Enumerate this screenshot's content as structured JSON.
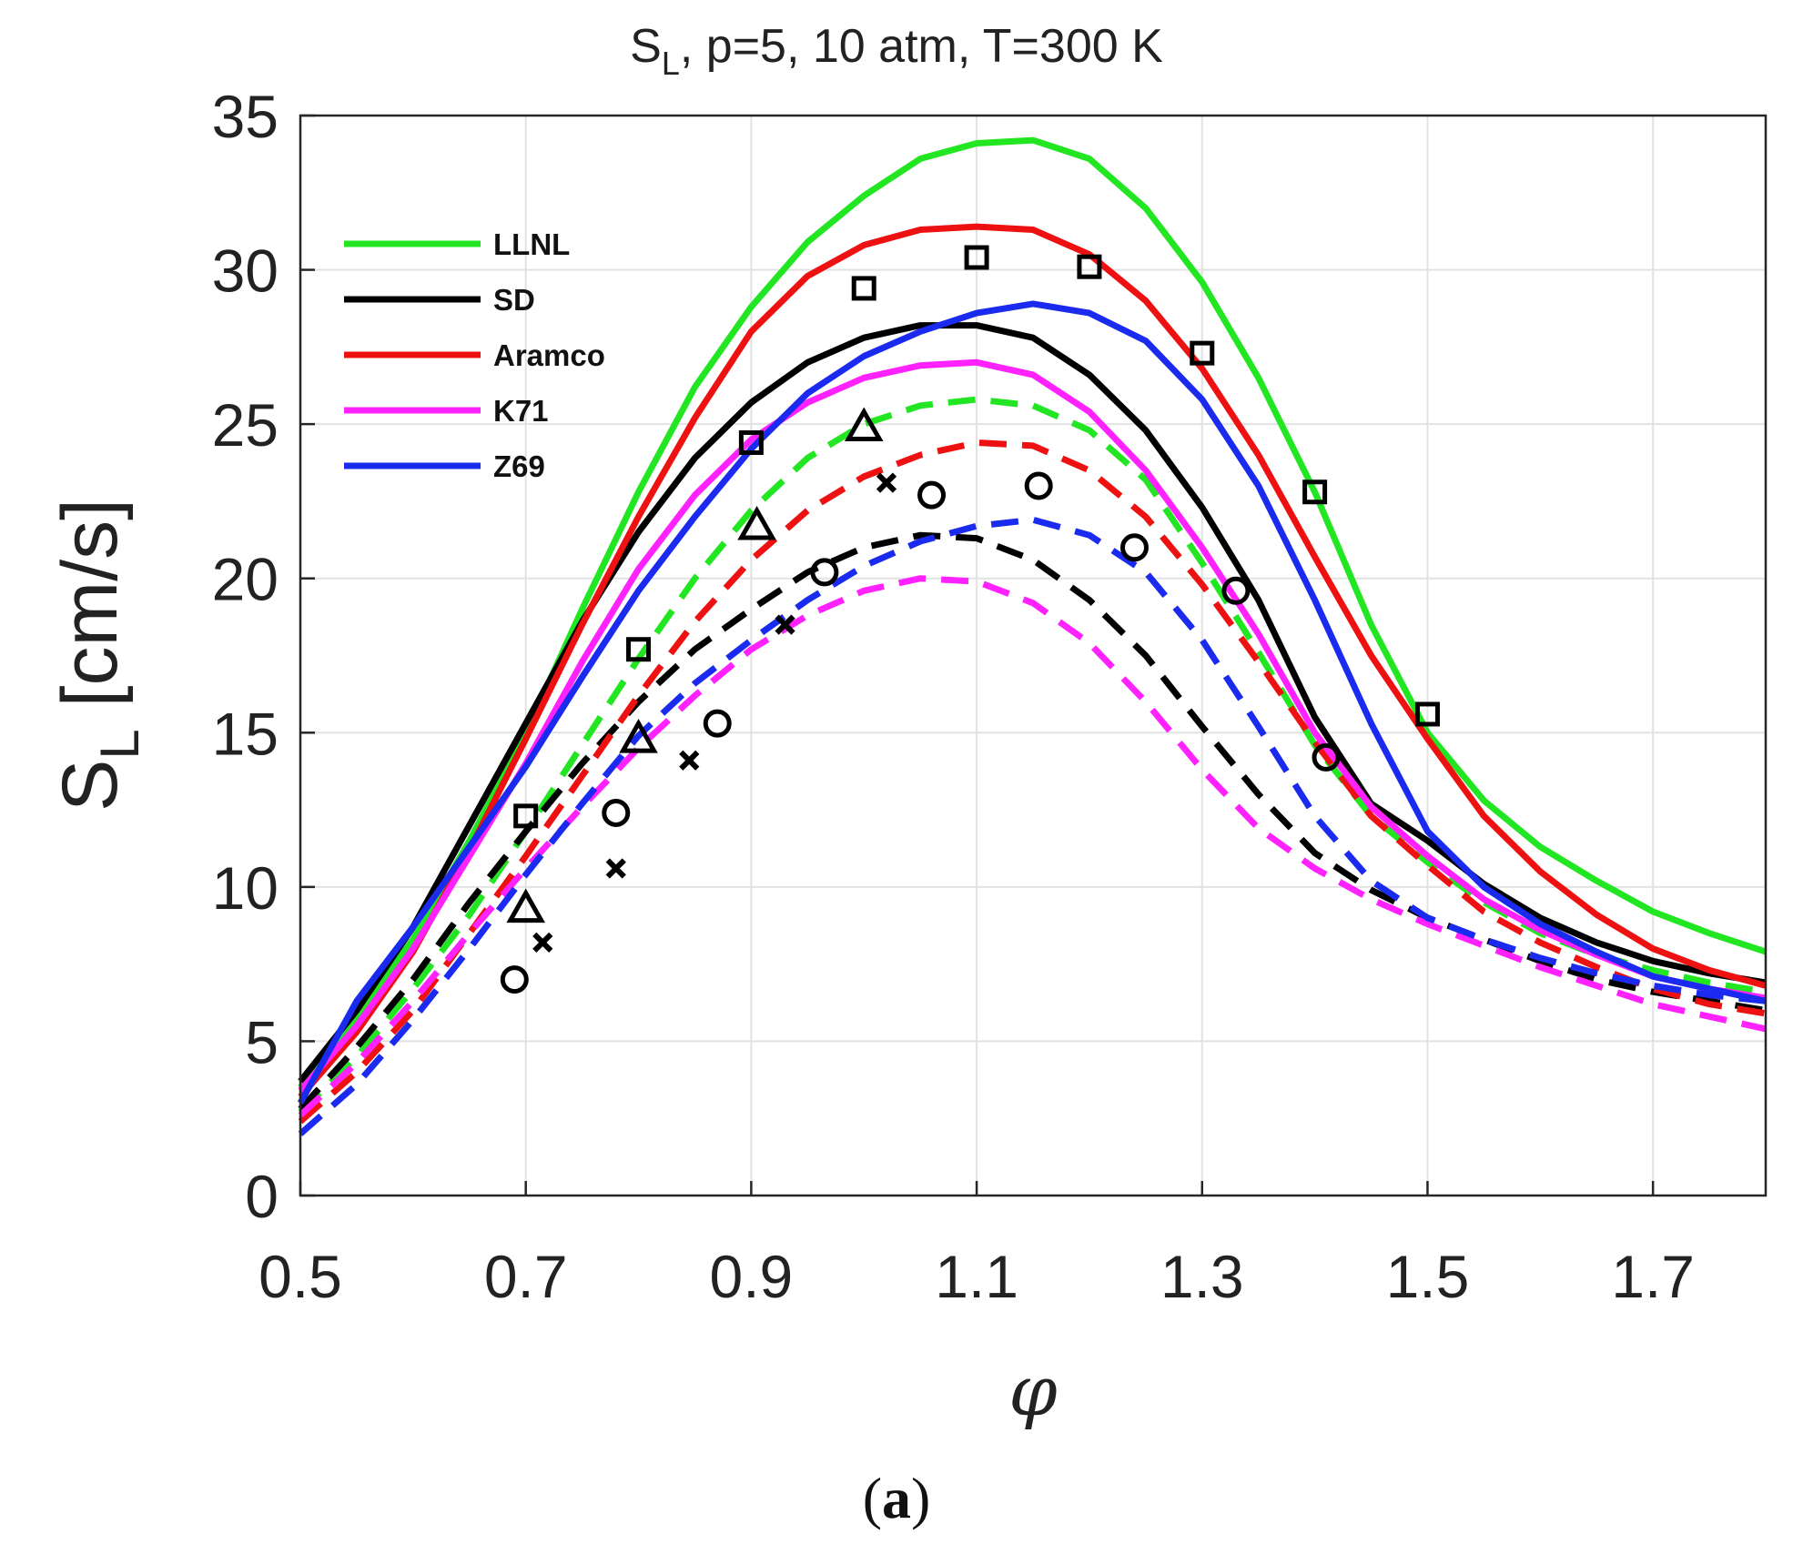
{
  "chart_data": {
    "type": "line",
    "title_main": "S",
    "title_sub": "L",
    "title_rest": ", p=5, 10 atm, T=300 K",
    "ylabel_main": "S",
    "ylabel_sub": "L",
    "ylabel_rest": " [cm/s]",
    "xlabel": "φ",
    "caption_open": "(",
    "caption_letter": "a",
    "caption_close": ")",
    "xlim": [
      0.5,
      1.8
    ],
    "ylim": [
      0,
      35
    ],
    "xticks": [
      0.5,
      0.7,
      0.9,
      1.1,
      1.3,
      1.5,
      1.7
    ],
    "xtick_labels": [
      "0.5",
      "0.7",
      "0.9",
      "1.1",
      "1.3",
      "1.5",
      "1.7"
    ],
    "yticks": [
      0,
      5,
      10,
      15,
      20,
      25,
      30,
      35
    ],
    "ytick_labels": [
      "0",
      "5",
      "10",
      "15",
      "20",
      "25",
      "30",
      "35"
    ],
    "grid": true,
    "legend_position": "top-left",
    "legend": [
      {
        "name": "LLNL",
        "color": "#22e622"
      },
      {
        "name": "SD",
        "color": "#000000"
      },
      {
        "name": "Aramco",
        "color": "#ee1111"
      },
      {
        "name": "K71",
        "color": "#ff22ff"
      },
      {
        "name": "Z69",
        "color": "#1a2aee"
      }
    ],
    "series": [
      {
        "name": "LLNL",
        "pressure_atm": 5,
        "style": "solid",
        "color": "#22e622",
        "x": [
          0.5,
          0.55,
          0.6,
          0.65,
          0.7,
          0.75,
          0.8,
          0.85,
          0.9,
          0.95,
          1.0,
          1.05,
          1.1,
          1.15,
          1.2,
          1.25,
          1.3,
          1.35,
          1.4,
          1.45,
          1.5,
          1.55,
          1.6,
          1.65,
          1.7,
          1.75,
          1.8
        ],
        "y": [
          3.5,
          5.8,
          8.3,
          11.5,
          15.0,
          19.0,
          22.8,
          26.2,
          28.8,
          30.9,
          32.4,
          33.6,
          34.1,
          34.2,
          33.6,
          32.0,
          29.6,
          26.5,
          22.8,
          18.5,
          15.0,
          12.8,
          11.3,
          10.2,
          9.2,
          8.5,
          7.9
        ]
      },
      {
        "name": "SD",
        "pressure_atm": 5,
        "style": "solid",
        "color": "#000000",
        "x": [
          0.5,
          0.55,
          0.6,
          0.65,
          0.7,
          0.75,
          0.8,
          0.85,
          0.9,
          0.95,
          1.0,
          1.05,
          1.1,
          1.15,
          1.2,
          1.25,
          1.3,
          1.35,
          1.4,
          1.45,
          1.5,
          1.55,
          1.6,
          1.65,
          1.7,
          1.75,
          1.8
        ],
        "y": [
          3.7,
          6.0,
          8.7,
          12.0,
          15.3,
          18.6,
          21.5,
          23.9,
          25.7,
          27.0,
          27.8,
          28.2,
          28.2,
          27.8,
          26.6,
          24.8,
          22.3,
          19.3,
          15.5,
          12.7,
          11.5,
          10.1,
          9.0,
          8.2,
          7.6,
          7.2,
          6.9
        ]
      },
      {
        "name": "Aramco",
        "pressure_atm": 5,
        "style": "solid",
        "color": "#ee1111",
        "x": [
          0.5,
          0.55,
          0.6,
          0.65,
          0.7,
          0.75,
          0.8,
          0.85,
          0.9,
          0.95,
          1.0,
          1.05,
          1.1,
          1.15,
          1.2,
          1.25,
          1.3,
          1.35,
          1.4,
          1.45,
          1.5,
          1.55,
          1.6,
          1.65,
          1.7,
          1.75,
          1.8
        ],
        "y": [
          3.2,
          5.3,
          7.9,
          11.2,
          14.8,
          18.5,
          22.0,
          25.2,
          28.0,
          29.8,
          30.8,
          31.3,
          31.4,
          31.3,
          30.5,
          29.0,
          26.8,
          24.0,
          20.7,
          17.5,
          14.8,
          12.3,
          10.5,
          9.1,
          8.0,
          7.3,
          6.8
        ]
      },
      {
        "name": "K71",
        "pressure_atm": 5,
        "style": "solid",
        "color": "#ff22ff",
        "x": [
          0.5,
          0.55,
          0.6,
          0.65,
          0.7,
          0.75,
          0.8,
          0.85,
          0.9,
          0.95,
          1.0,
          1.05,
          1.1,
          1.15,
          1.2,
          1.25,
          1.3,
          1.35,
          1.4,
          1.45,
          1.5,
          1.55,
          1.6,
          1.65,
          1.7,
          1.75,
          1.8
        ],
        "y": [
          3.4,
          5.5,
          8.0,
          11.0,
          14.0,
          17.3,
          20.3,
          22.7,
          24.5,
          25.7,
          26.5,
          26.9,
          27.0,
          26.6,
          25.4,
          23.5,
          21.0,
          18.2,
          15.0,
          12.6,
          11.0,
          9.6,
          8.6,
          7.8,
          7.1,
          6.7,
          6.4
        ]
      },
      {
        "name": "Z69",
        "pressure_atm": 5,
        "style": "solid",
        "color": "#1a2aee",
        "x": [
          0.5,
          0.55,
          0.6,
          0.65,
          0.7,
          0.75,
          0.8,
          0.85,
          0.9,
          0.95,
          1.0,
          1.05,
          1.1,
          1.15,
          1.2,
          1.25,
          1.3,
          1.35,
          1.4,
          1.45,
          1.5,
          1.55,
          1.6,
          1.65,
          1.7,
          1.75,
          1.8
        ],
        "y": [
          3.0,
          6.3,
          8.7,
          11.3,
          13.9,
          16.8,
          19.6,
          22.0,
          24.2,
          26.0,
          27.2,
          28.0,
          28.6,
          28.9,
          28.6,
          27.7,
          25.8,
          23.0,
          19.3,
          15.3,
          11.8,
          10.0,
          8.8,
          7.9,
          7.1,
          6.7,
          6.3
        ]
      },
      {
        "name": "LLNL",
        "pressure_atm": 10,
        "style": "dashed",
        "color": "#22e622",
        "x": [
          0.5,
          0.55,
          0.6,
          0.65,
          0.7,
          0.75,
          0.8,
          0.85,
          0.9,
          0.95,
          1.0,
          1.05,
          1.1,
          1.15,
          1.2,
          1.25,
          1.3,
          1.35,
          1.4,
          1.45,
          1.5,
          1.55,
          1.6,
          1.65,
          1.7,
          1.75,
          1.8
        ],
        "y": [
          2.7,
          4.5,
          6.7,
          9.1,
          11.8,
          14.6,
          17.4,
          20.0,
          22.2,
          23.9,
          25.0,
          25.6,
          25.8,
          25.6,
          24.8,
          23.2,
          20.5,
          17.6,
          14.6,
          12.3,
          10.8,
          9.5,
          8.5,
          7.8,
          7.3,
          6.9,
          6.6
        ]
      },
      {
        "name": "SD",
        "pressure_atm": 10,
        "style": "dashed",
        "color": "#000000",
        "x": [
          0.5,
          0.55,
          0.6,
          0.65,
          0.7,
          0.75,
          0.8,
          0.85,
          0.9,
          0.95,
          1.0,
          1.05,
          1.1,
          1.15,
          1.2,
          1.25,
          1.3,
          1.35,
          1.4,
          1.45,
          1.5,
          1.55,
          1.6,
          1.65,
          1.7,
          1.75,
          1.8
        ],
        "y": [
          2.8,
          4.8,
          7.0,
          9.5,
          11.8,
          14.0,
          16.0,
          17.7,
          19.0,
          20.2,
          21.0,
          21.4,
          21.3,
          20.6,
          19.3,
          17.5,
          15.2,
          13.0,
          11.1,
          9.9,
          9.0,
          8.3,
          7.6,
          7.0,
          6.6,
          6.3,
          6.0
        ]
      },
      {
        "name": "Aramco",
        "pressure_atm": 10,
        "style": "dashed",
        "color": "#ee1111",
        "x": [
          0.5,
          0.55,
          0.6,
          0.65,
          0.7,
          0.75,
          0.8,
          0.85,
          0.9,
          0.95,
          1.0,
          1.05,
          1.1,
          1.15,
          1.2,
          1.25,
          1.3,
          1.35,
          1.4,
          1.45,
          1.5,
          1.55,
          1.6,
          1.65,
          1.7,
          1.75,
          1.8
        ],
        "y": [
          2.4,
          4.0,
          6.0,
          8.5,
          11.0,
          13.6,
          16.2,
          18.6,
          20.6,
          22.2,
          23.3,
          24.0,
          24.4,
          24.3,
          23.5,
          22.0,
          19.8,
          17.3,
          14.7,
          12.3,
          10.7,
          9.2,
          8.2,
          7.4,
          6.7,
          6.2,
          5.9
        ]
      },
      {
        "name": "K71",
        "pressure_atm": 10,
        "style": "dashed",
        "color": "#ff22ff",
        "x": [
          0.5,
          0.55,
          0.6,
          0.65,
          0.7,
          0.75,
          0.8,
          0.85,
          0.9,
          0.95,
          1.0,
          1.05,
          1.1,
          1.15,
          1.2,
          1.25,
          1.3,
          1.35,
          1.4,
          1.45,
          1.5,
          1.55,
          1.6,
          1.65,
          1.7,
          1.75,
          1.8
        ],
        "y": [
          2.6,
          4.3,
          6.3,
          8.5,
          10.6,
          12.6,
          14.5,
          16.2,
          17.7,
          18.8,
          19.6,
          20.0,
          19.9,
          19.2,
          17.9,
          16.0,
          13.8,
          11.9,
          10.6,
          9.6,
          8.8,
          8.1,
          7.4,
          6.8,
          6.2,
          5.8,
          5.4
        ]
      },
      {
        "name": "Z69",
        "pressure_atm": 10,
        "style": "dashed",
        "color": "#1a2aee",
        "x": [
          0.5,
          0.55,
          0.6,
          0.65,
          0.7,
          0.75,
          0.8,
          0.85,
          0.9,
          0.95,
          1.0,
          1.05,
          1.1,
          1.15,
          1.2,
          1.25,
          1.3,
          1.35,
          1.4,
          1.45,
          1.5,
          1.55,
          1.6,
          1.65,
          1.7,
          1.75,
          1.8
        ],
        "y": [
          2.0,
          3.6,
          5.7,
          8.0,
          10.4,
          12.7,
          14.9,
          16.6,
          18.0,
          19.3,
          20.4,
          21.2,
          21.7,
          21.9,
          21.4,
          20.2,
          18.0,
          15.2,
          12.3,
          10.2,
          9.0,
          8.3,
          7.7,
          7.2,
          6.8,
          6.5,
          6.3
        ]
      }
    ],
    "markers": [
      {
        "shape": "square",
        "points": [
          [
            0.7,
            12.3
          ],
          [
            0.8,
            17.7
          ],
          [
            0.9,
            24.4
          ],
          [
            1.0,
            29.4
          ],
          [
            1.1,
            30.4
          ],
          [
            1.2,
            30.1
          ],
          [
            1.3,
            27.3
          ],
          [
            1.4,
            22.8
          ],
          [
            1.5,
            15.6
          ]
        ]
      },
      {
        "shape": "circle",
        "points": [
          [
            0.69,
            7.0
          ],
          [
            0.78,
            12.4
          ],
          [
            0.87,
            15.3
          ],
          [
            0.965,
            20.2
          ],
          [
            1.06,
            22.7
          ],
          [
            1.155,
            23.0
          ],
          [
            1.24,
            21.0
          ],
          [
            1.33,
            19.6
          ],
          [
            1.41,
            14.2
          ]
        ]
      },
      {
        "shape": "triangle",
        "points": [
          [
            0.7,
            9.3
          ],
          [
            0.8,
            14.8
          ],
          [
            0.905,
            21.7
          ],
          [
            1.0,
            24.9
          ]
        ]
      },
      {
        "shape": "x",
        "points": [
          [
            0.715,
            8.2
          ],
          [
            0.78,
            10.6
          ],
          [
            0.845,
            14.1
          ],
          [
            0.93,
            18.5
          ],
          [
            1.02,
            23.1
          ]
        ]
      }
    ]
  }
}
